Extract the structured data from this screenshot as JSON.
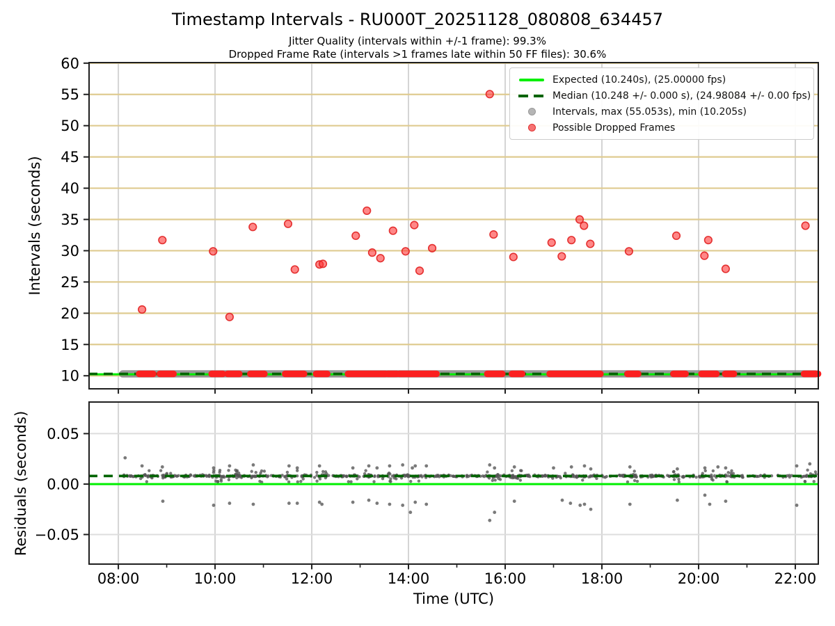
{
  "figure": {
    "title": "Timestamp Intervals - RU000T_20251128_080808_634457",
    "subtitle_jitter": "Jitter Quality (intervals within +/-1 frame): 99.3%",
    "subtitle_dropped": "Dropped Frame Rate (intervals >1 frames late within 50 FF files): 30.6%"
  },
  "colors": {
    "expected_line": "#00ef00",
    "median_line": "#006400",
    "intervals_gray": "rgba(128,128,128,0.82)",
    "residual_dot": "rgba(85,85,85,0.78)",
    "dropped_fill": "rgba(255,48,48,0.58)",
    "dropped_edge": "rgba(225,32,32,0.9)",
    "dropped_cluster": "#fb1f1f",
    "grid_h_top": "#dfcb90",
    "grid_v": "#d4d4d4",
    "grid_h_bottom": "#dddddd",
    "spine": "#1f1f1f",
    "legend_gray_dot": "#b5b5b5",
    "legend_gray_edge": "#999999",
    "legend_red_dot": "rgba(244,90,90,0.85)",
    "legend_red_edge": "#e03030"
  },
  "chart_data": [
    {
      "type": "scatter",
      "name": "intervals-vs-time",
      "ylabel": "Intervals (seconds)",
      "ylim": [
        7.8,
        60.2
      ],
      "yticks": [
        10,
        15,
        20,
        25,
        30,
        35,
        40,
        45,
        50,
        55,
        60
      ],
      "xlim_hours": [
        7.38,
        22.49
      ],
      "x_tick_hours": [
        8,
        10,
        12,
        14,
        16,
        18,
        20,
        22
      ],
      "x_tick_labels": [
        "08:00",
        "10:00",
        "12:00",
        "14:00",
        "16:00",
        "18:00",
        "20:00",
        "22:00"
      ],
      "x_minor_hours": [
        9,
        11,
        13,
        15,
        17,
        19,
        21
      ],
      "grid": true,
      "legend_position": "upper right",
      "legend": [
        "Expected (10.240s), (25.00000 fps)",
        "Median (10.248 +/- 0.000 s), (24.98084 +/- 0.00 fps)",
        "Intervals, max (55.053s), min (10.205s)",
        "Possible Dropped Frames"
      ],
      "expected_interval_s": 10.24,
      "expected_fps": 25.0,
      "median_interval_s": 10.248,
      "median_fps": 24.98084,
      "max_interval_s": 55.053,
      "min_interval_s": 10.205,
      "intervals_band": {
        "t_start": 8.09,
        "t_end": 22.42,
        "value": 10.3
      },
      "dropped_points": [
        [
          8.49,
          20.6
        ],
        [
          8.91,
          31.7
        ],
        [
          9.96,
          29.9
        ],
        [
          10.3,
          19.4
        ],
        [
          10.78,
          33.8
        ],
        [
          11.51,
          34.3
        ],
        [
          11.65,
          27.0
        ],
        [
          12.16,
          27.8
        ],
        [
          12.23,
          27.9
        ],
        [
          12.91,
          32.4
        ],
        [
          13.14,
          36.4
        ],
        [
          13.25,
          29.7
        ],
        [
          13.42,
          28.8
        ],
        [
          13.68,
          33.2
        ],
        [
          13.94,
          29.9
        ],
        [
          14.12,
          34.1
        ],
        [
          14.23,
          26.8
        ],
        [
          14.49,
          30.4
        ],
        [
          15.68,
          55.05
        ],
        [
          15.76,
          32.6
        ],
        [
          16.17,
          29.0
        ],
        [
          16.96,
          31.3
        ],
        [
          17.17,
          29.1
        ],
        [
          17.37,
          31.7
        ],
        [
          17.54,
          35.0
        ],
        [
          17.63,
          34.0
        ],
        [
          17.76,
          31.1
        ],
        [
          18.56,
          29.9
        ],
        [
          19.54,
          32.4
        ],
        [
          20.12,
          29.2
        ],
        [
          20.2,
          31.7
        ],
        [
          20.56,
          27.1
        ],
        [
          22.21,
          34.0
        ]
      ],
      "dropped_clusters": [
        [
          8.43,
          8.72
        ],
        [
          8.86,
          9.14
        ],
        [
          9.93,
          10.16
        ],
        [
          10.26,
          10.5
        ],
        [
          10.73,
          11.02
        ],
        [
          11.45,
          11.84
        ],
        [
          12.09,
          12.32
        ],
        [
          12.75,
          13.53
        ],
        [
          13.57,
          13.76
        ],
        [
          13.81,
          14.58
        ],
        [
          15.63,
          15.94
        ],
        [
          16.14,
          16.35
        ],
        [
          16.92,
          17.97
        ],
        [
          18.53,
          18.75
        ],
        [
          19.48,
          19.73
        ],
        [
          20.06,
          20.37
        ],
        [
          20.55,
          20.73
        ],
        [
          22.18,
          22.47
        ]
      ]
    },
    {
      "type": "scatter",
      "name": "residuals-vs-time",
      "ylabel": "Residuals (seconds)",
      "xlabel": "Time (UTC)",
      "ylim": [
        -0.08,
        0.082
      ],
      "yticks": [
        {
          "v": 0.05,
          "label": "0.05"
        },
        {
          "v": 0.0,
          "label": "0.00"
        },
        {
          "v": -0.05,
          "label": "−0.05"
        }
      ],
      "zero_line_value": 0.0,
      "median_residual_s": 0.008,
      "band": {
        "t_start": 8.1,
        "t_end": 22.42,
        "center": 0.0079,
        "sigma": 0.0017,
        "n": 520
      },
      "outliers_upper": [
        [
          8.14,
          0.026
        ],
        [
          8.49,
          0.018
        ],
        [
          8.91,
          0.017
        ],
        [
          9.97,
          0.016
        ],
        [
          10.3,
          0.018
        ],
        [
          10.79,
          0.019
        ],
        [
          11.53,
          0.018
        ],
        [
          11.7,
          0.016
        ],
        [
          12.16,
          0.018
        ],
        [
          12.85,
          0.016
        ],
        [
          13.18,
          0.018
        ],
        [
          13.35,
          0.016
        ],
        [
          13.61,
          0.018
        ],
        [
          13.88,
          0.019
        ],
        [
          14.08,
          0.016
        ],
        [
          14.14,
          0.018
        ],
        [
          14.37,
          0.018
        ],
        [
          15.68,
          0.019
        ],
        [
          15.78,
          0.016
        ],
        [
          16.19,
          0.017
        ],
        [
          17.0,
          0.016
        ],
        [
          17.37,
          0.017
        ],
        [
          17.64,
          0.018
        ],
        [
          17.77,
          0.015
        ],
        [
          18.58,
          0.017
        ],
        [
          19.56,
          0.015
        ],
        [
          20.13,
          0.016
        ],
        [
          20.4,
          0.017
        ],
        [
          20.56,
          0.016
        ],
        [
          22.03,
          0.018
        ],
        [
          22.3,
          0.02
        ]
      ],
      "outliers_lower": [
        [
          8.92,
          -0.017
        ],
        [
          9.97,
          -0.021
        ],
        [
          10.3,
          -0.019
        ],
        [
          10.79,
          -0.02
        ],
        [
          11.53,
          -0.019
        ],
        [
          11.7,
          -0.019
        ],
        [
          12.16,
          -0.018
        ],
        [
          12.21,
          -0.02
        ],
        [
          12.85,
          -0.018
        ],
        [
          13.18,
          -0.016
        ],
        [
          13.35,
          -0.019
        ],
        [
          13.61,
          -0.02
        ],
        [
          13.88,
          -0.021
        ],
        [
          14.04,
          -0.028
        ],
        [
          14.14,
          -0.018
        ],
        [
          14.37,
          -0.02
        ],
        [
          15.68,
          -0.036
        ],
        [
          15.78,
          -0.028
        ],
        [
          16.19,
          -0.017
        ],
        [
          17.18,
          -0.016
        ],
        [
          17.35,
          -0.019
        ],
        [
          17.55,
          -0.021
        ],
        [
          17.64,
          -0.02
        ],
        [
          17.77,
          -0.025
        ],
        [
          18.58,
          -0.02
        ],
        [
          19.56,
          -0.016
        ],
        [
          20.13,
          -0.011
        ],
        [
          20.23,
          -0.02
        ],
        [
          20.56,
          -0.017
        ],
        [
          22.03,
          -0.021
        ]
      ]
    }
  ]
}
